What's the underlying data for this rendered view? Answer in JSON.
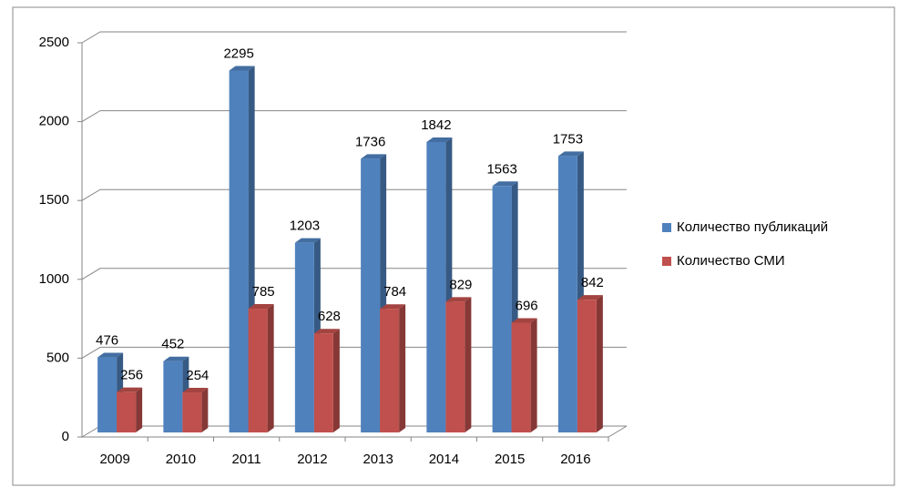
{
  "chart_data": {
    "type": "bar",
    "categories": [
      "2009",
      "2010",
      "2011",
      "2012",
      "2013",
      "2014",
      "2015",
      "2016"
    ],
    "series": [
      {
        "name": "Количество публикаций",
        "color": "#4f81bd",
        "values": [
          476,
          452,
          2295,
          1203,
          1736,
          1842,
          1563,
          1753
        ]
      },
      {
        "name": "Количество СМИ",
        "color": "#c0504d",
        "values": [
          256,
          254,
          785,
          628,
          784,
          829,
          696,
          842
        ]
      }
    ],
    "ylim": [
      0,
      2500
    ],
    "yticks": [
      0,
      500,
      1000,
      1500,
      2000,
      2500
    ],
    "grid": true,
    "legend": "right"
  }
}
